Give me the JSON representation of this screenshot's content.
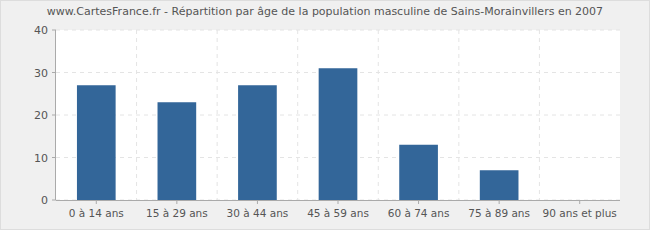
{
  "chart_data": {
    "type": "bar",
    "title": "www.CartesFrance.fr - Répartition par âge de la population masculine de Sains-Morainvillers en 2007",
    "categories": [
      "0 à 14 ans",
      "15 à 29 ans",
      "30 à 44 ans",
      "45 à 59 ans",
      "60 à 74 ans",
      "75 à 89 ans",
      "90 ans et plus"
    ],
    "values": [
      27,
      23,
      27,
      31,
      13,
      7,
      0
    ],
    "color": "#336699",
    "ylim": [
      0,
      40
    ],
    "yticks": [
      0,
      10,
      20,
      30,
      40
    ],
    "grid": true
  }
}
